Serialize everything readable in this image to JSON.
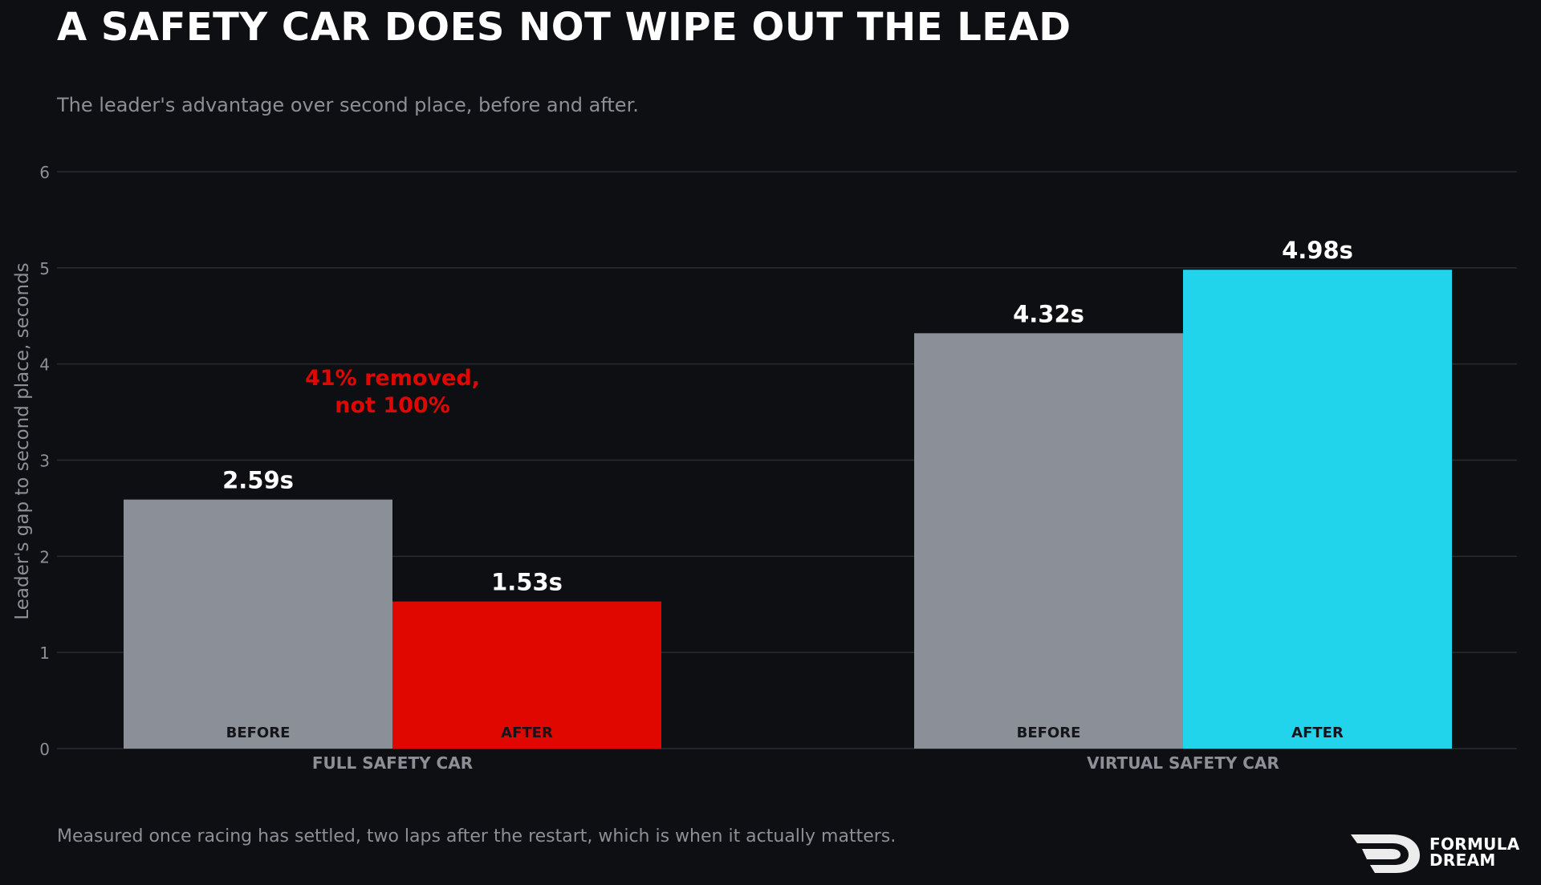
{
  "header": {
    "title": "A SAFETY CAR DOES NOT WIPE OUT THE LEAD",
    "subtitle": "The leader's advantage over second place, before and after."
  },
  "footer": {
    "note": "Measured once racing has settled, two laps after the restart, which is when it actually matters.",
    "brand_line1": "FORMULA",
    "brand_line2": "DREAM"
  },
  "annotation": {
    "line1": "41% removed,",
    "line2": "not 100%",
    "color": "#e00700"
  },
  "chart_data": {
    "type": "bar",
    "title": "A SAFETY CAR DOES NOT WIPE OUT THE LEAD",
    "ylabel": "Leader's gap to second place, seconds",
    "xlabel": "",
    "ylim": [
      0,
      6
    ],
    "yticks": [
      "0",
      "1",
      "2",
      "3",
      "4",
      "5",
      "6"
    ],
    "grid": true,
    "groups": [
      {
        "category": "FULL SAFETY CAR",
        "bars": [
          {
            "label": "BEFORE",
            "value": 2.59,
            "value_label": "2.59s",
            "color": "#8b8f97"
          },
          {
            "label": "AFTER",
            "value": 1.53,
            "value_label": "1.53s",
            "color": "#e00700"
          }
        ]
      },
      {
        "category": "VIRTUAL SAFETY CAR",
        "bars": [
          {
            "label": "BEFORE",
            "value": 4.32,
            "value_label": "4.32s",
            "color": "#8b8f97"
          },
          {
            "label": "AFTER",
            "value": 4.98,
            "value_label": "4.98s",
            "color": "#22d3ec"
          }
        ]
      }
    ]
  },
  "colors": {
    "background": "#0e0f13",
    "gridline": "#2a2c31",
    "axis_text": "#8d8f96",
    "bar_inner_label": "#14151a",
    "value_label": "#ffffff"
  }
}
